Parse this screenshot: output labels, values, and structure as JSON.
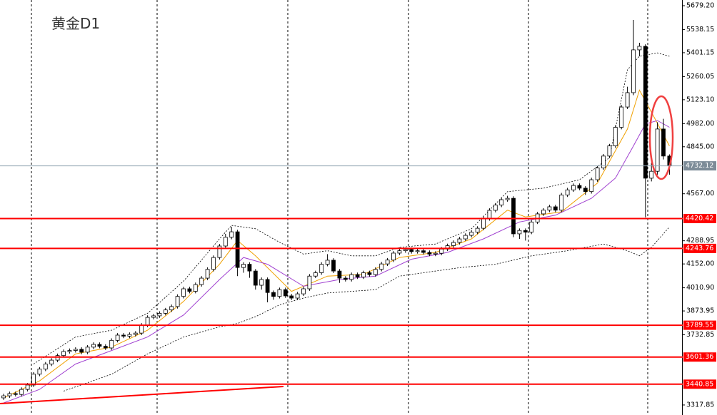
{
  "chart_data": {
    "type": "candlestick",
    "title": "黄金D1",
    "ylim": [
      3258.6,
      5712.9
    ],
    "yticks": [
      {
        "value": 5679.2,
        "label": "5679.20"
      },
      5538.15,
      5401.15,
      5260.05,
      {
        "value": 5123.1,
        "label": "5123.10"
      },
      {
        "value": 4982,
        "label": "4982.00"
      },
      {
        "value": 4845,
        "label": "4845.00"
      },
      {
        "value": 4567,
        "label": "4567.00"
      },
      4288.95,
      {
        "value": 4152,
        "label": "4152.00"
      },
      {
        "value": 4010.9,
        "label": "4010.90"
      },
      3873.95,
      3732.85,
      3317.85
    ],
    "current_price": 4732.12,
    "levels": [
      4420.42,
      4243.76,
      3789.55,
      3601.36,
      3440.85
    ],
    "level_color": "#ff0000",
    "open": [
      3360,
      3372,
      3385,
      3380,
      3410,
      3436,
      3500,
      3530,
      3560,
      3583,
      3610,
      3634,
      3640,
      3647,
      3630,
      3660,
      3676,
      3665,
      3655,
      3700,
      3731,
      3725,
      3735,
      3743,
      3790,
      3836,
      3845,
      3860,
      3880,
      3900,
      3960,
      4005,
      3990,
      4030,
      4068,
      4120,
      4190,
      4258,
      4310,
      4342,
      4131,
      4150,
      4110,
      4026,
      4060,
      3983,
      3960,
      4000,
      3963,
      3950,
      3975,
      4005,
      4080,
      4100,
      4150,
      4174,
      4110,
      4068,
      4060,
      4089,
      4075,
      4100,
      4089,
      4120,
      4152,
      4175,
      4216,
      4230,
      4237,
      4225,
      4230,
      4220,
      4210,
      4215,
      4240,
      4260,
      4279,
      4300,
      4321,
      4340,
      4363,
      4420,
      4469,
      4500,
      4532,
      4540,
      4330,
      4350,
      4340,
      4400,
      4448,
      4470,
      4490,
      4470,
      4560,
      4590,
      4616,
      4600,
      4580,
      4650,
      4720,
      4790,
      4850,
      4960,
      5080,
      5165,
      5418,
      5439,
      4659,
      4700,
      4950,
      4790
    ],
    "high": [
      3384,
      3397,
      3397,
      3422,
      3448,
      3512,
      3542,
      3572,
      3595,
      3622,
      3646,
      3652,
      3659,
      3659,
      3672,
      3688,
      3688,
      3677,
      3712,
      3743,
      3743,
      3747,
      3755,
      3802,
      3848,
      3857,
      3872,
      3892,
      3912,
      3972,
      4017,
      4017,
      4042,
      4080,
      4132,
      4202,
      4270,
      4330,
      4372,
      4354,
      4162,
      4162,
      4122,
      4072,
      4072,
      3995,
      4012,
      4012,
      3975,
      3987,
      4017,
      4092,
      4112,
      4162,
      4210,
      4186,
      4122,
      4080,
      4101,
      4101,
      4112,
      4112,
      4132,
      4164,
      4187,
      4228,
      4250,
      4249,
      4249,
      4242,
      4242,
      4232,
      4227,
      4252,
      4272,
      4291,
      4312,
      4333,
      4352,
      4375,
      4432,
      4481,
      4512,
      4544,
      4555,
      4552,
      4362,
      4362,
      4412,
      4460,
      4482,
      4502,
      4502,
      4572,
      4602,
      4628,
      4628,
      4612,
      4662,
      4732,
      4802,
      4862,
      4972,
      5092,
      5200,
      5595,
      5460,
      5451,
      4750,
      4990,
      5010,
      4800
    ],
    "low": [
      3348,
      3360,
      3368,
      3368,
      3398,
      3424,
      3488,
      3518,
      3548,
      3571,
      3598,
      3622,
      3628,
      3618,
      3618,
      3648,
      3653,
      3643,
      3643,
      3688,
      3713,
      3713,
      3723,
      3731,
      3778,
      3824,
      3833,
      3848,
      3868,
      3888,
      3948,
      3978,
      3978,
      4018,
      4056,
      4108,
      4178,
      4246,
      4298,
      4080,
      4100,
      4070,
      4000,
      4000,
      3925,
      3940,
      3948,
      3951,
      3938,
      3938,
      3963,
      3993,
      4068,
      4088,
      4138,
      4098,
      4040,
      4048,
      4048,
      4063,
      4063,
      4077,
      4077,
      4108,
      4140,
      4163,
      4204,
      4218,
      4213,
      4213,
      4208,
      4198,
      4198,
      4203,
      4228,
      4248,
      4267,
      4288,
      4309,
      4328,
      4351,
      4408,
      4457,
      4488,
      4520,
      4310,
      4300,
      4290,
      4328,
      4388,
      4436,
      4458,
      4458,
      4458,
      4548,
      4578,
      4588,
      4560,
      4568,
      4638,
      4708,
      4778,
      4838,
      4948,
      5068,
      5150,
      5380,
      4427,
      4640,
      4680,
      4770,
      4680
    ],
    "close": [
      3372,
      3385,
      3380,
      3410,
      3436,
      3500,
      3530,
      3560,
      3583,
      3610,
      3634,
      3640,
      3647,
      3630,
      3660,
      3676,
      3665,
      3655,
      3700,
      3731,
      3725,
      3735,
      3743,
      3790,
      3836,
      3845,
      3860,
      3880,
      3900,
      3960,
      4005,
      3990,
      4030,
      4068,
      4120,
      4190,
      4258,
      4310,
      4342,
      4131,
      4150,
      4110,
      4026,
      4060,
      3983,
      3960,
      4000,
      3963,
      3950,
      3975,
      4005,
      4080,
      4100,
      4150,
      4174,
      4110,
      4068,
      4060,
      4089,
      4075,
      4100,
      4089,
      4120,
      4152,
      4175,
      4216,
      4230,
      4237,
      4225,
      4230,
      4220,
      4210,
      4215,
      4240,
      4260,
      4279,
      4300,
      4321,
      4340,
      4363,
      4420,
      4469,
      4500,
      4532,
      4540,
      4330,
      4350,
      4340,
      4400,
      4448,
      4470,
      4490,
      4470,
      4560,
      4590,
      4616,
      4600,
      4580,
      4650,
      4720,
      4790,
      4850,
      4960,
      5080,
      5165,
      5418,
      5439,
      4659,
      4700,
      4950,
      4790,
      4732
    ],
    "indicators": [
      {
        "color": "#f0a000",
        "dashed": false,
        "x": [
          0,
          6,
          12,
          18,
          24,
          30,
          36,
          39,
          42,
          48,
          54,
          60,
          66,
          72,
          78,
          84,
          87,
          93,
          99,
          104,
          106,
          108,
          111
        ],
        "values": [
          3360,
          3460,
          3620,
          3660,
          3760,
          3930,
          4150,
          4290,
          4200,
          3990,
          4080,
          4090,
          4190,
          4220,
          4300,
          4470,
          4430,
          4460,
          4630,
          4950,
          5180,
          5050,
          4850
        ]
      },
      {
        "color": "#a040d0",
        "dashed": false,
        "x": [
          0,
          6,
          12,
          18,
          24,
          30,
          36,
          40,
          44,
          50,
          56,
          62,
          68,
          74,
          80,
          86,
          92,
          98,
          102,
          105,
          107,
          109,
          111
        ],
        "values": [
          3330,
          3410,
          3560,
          3640,
          3720,
          3850,
          4060,
          4190,
          4150,
          4020,
          4060,
          4080,
          4180,
          4220,
          4300,
          4400,
          4440,
          4540,
          4660,
          4850,
          4980,
          5000,
          4960
        ]
      },
      {
        "color": "#000000",
        "dashed": true,
        "x": [
          5,
          12,
          18,
          24,
          30,
          36,
          38,
          42,
          46,
          50,
          54,
          58,
          62,
          66,
          72,
          78,
          84,
          90,
          96,
          101,
          104,
          106,
          109,
          111
        ],
        "values": [
          3560,
          3720,
          3760,
          3860,
          4050,
          4300,
          4380,
          4360,
          4280,
          4210,
          4230,
          4200,
          4200,
          4250,
          4270,
          4360,
          4580,
          4600,
          4650,
          4780,
          5300,
          5380,
          5400,
          5380
        ]
      },
      {
        "color": "#000000",
        "dashed": true,
        "x": [
          10,
          18,
          24,
          30,
          36,
          39,
          42,
          46,
          50,
          54,
          58,
          62,
          66,
          70,
          76,
          82,
          88,
          94,
          100,
          104,
          106,
          108,
          111
        ],
        "values": [
          3400,
          3500,
          3620,
          3720,
          3780,
          3800,
          3840,
          3910,
          3950,
          3980,
          3990,
          4000,
          4080,
          4100,
          4130,
          4150,
          4200,
          4230,
          4270,
          4230,
          4200,
          4250,
          4370
        ]
      }
    ]
  }
}
